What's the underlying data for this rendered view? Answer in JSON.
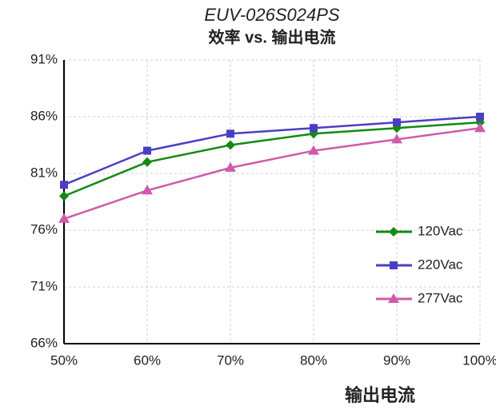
{
  "chart_data": {
    "type": "line",
    "title": "EUV-026S024PS",
    "subtitle": "效率 vs. 输出电流",
    "x_label": "输出电流",
    "x": [
      50,
      60,
      70,
      80,
      90,
      100
    ],
    "xlim": [
      50,
      100
    ],
    "xticks": [
      {
        "value": 50,
        "label": "50%"
      },
      {
        "value": 60,
        "label": "60%"
      },
      {
        "value": 70,
        "label": "70%"
      },
      {
        "value": 80,
        "label": "80%"
      },
      {
        "value": 90,
        "label": "90%"
      },
      {
        "value": 100,
        "label": "100%"
      }
    ],
    "ylim": [
      66,
      91
    ],
    "yticks": [
      {
        "value": 66,
        "label": "66%"
      },
      {
        "value": 71,
        "label": "71%"
      },
      {
        "value": 76,
        "label": "76%"
      },
      {
        "value": 81,
        "label": "81%"
      },
      {
        "value": 86,
        "label": "86%"
      },
      {
        "value": 91,
        "label": "91%"
      }
    ],
    "grid": true,
    "legend": "right",
    "series": [
      {
        "name": "120Vac",
        "color": "#138a13",
        "values": [
          79,
          82,
          83.5,
          84.5,
          85,
          85.5
        ]
      },
      {
        "name": "220Vac",
        "color": "#4a3fc4",
        "values": [
          80,
          83,
          84.5,
          85,
          85.5,
          86
        ]
      },
      {
        "name": "277Vac",
        "color": "#d05aa8",
        "values": [
          77,
          79.5,
          81.5,
          83,
          84,
          85
        ]
      }
    ]
  }
}
